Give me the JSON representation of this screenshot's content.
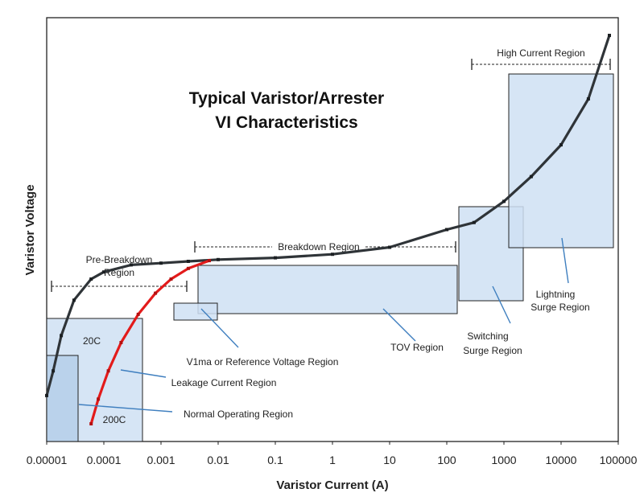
{
  "chart_data": {
    "type": "line",
    "title": [
      "Typical Varistor/Arrester",
      "VI Characteristics"
    ],
    "xlabel": "Varistor Current (A)",
    "ylabel": "Varistor Voltage",
    "x_scale": "log",
    "xlim": [
      1e-05,
      100000
    ],
    "y_ticks_shown": false,
    "x_ticks": [
      "0.00001",
      "0.0001",
      "0.001",
      "0.01",
      "0.1",
      "1",
      "10",
      "100",
      "1000",
      "10000",
      "100000"
    ],
    "series": [
      {
        "name": "20C",
        "color": "#2f3438",
        "points": [
          [
            1e-05,
            0.13
          ],
          [
            1.3e-05,
            0.2
          ],
          [
            1.8e-05,
            0.3
          ],
          [
            3e-05,
            0.4
          ],
          [
            6e-05,
            0.46
          ],
          [
            0.0001,
            0.48
          ],
          [
            0.0003,
            0.5
          ],
          [
            0.001,
            0.505
          ],
          [
            0.003,
            0.51
          ],
          [
            0.01,
            0.515
          ],
          [
            0.1,
            0.52
          ],
          [
            1,
            0.53
          ],
          [
            10,
            0.55
          ],
          [
            100,
            0.6
          ],
          [
            300,
            0.62
          ],
          [
            1000,
            0.68
          ],
          [
            3000,
            0.75
          ],
          [
            10000,
            0.84
          ],
          [
            30000,
            0.97
          ],
          [
            70000,
            1.15
          ]
        ]
      },
      {
        "name": "200C",
        "color": "#e31b1b",
        "points": [
          [
            6e-05,
            0.05
          ],
          [
            8e-05,
            0.12
          ],
          [
            0.00012,
            0.2
          ],
          [
            0.0002,
            0.28
          ],
          [
            0.0004,
            0.36
          ],
          [
            0.0008,
            0.42
          ],
          [
            0.0015,
            0.46
          ],
          [
            0.003,
            0.49
          ],
          [
            0.007,
            0.512
          ]
        ]
      }
    ],
    "regions": [
      "Pre-Breakdown Region",
      "Breakdown Region",
      "High Current Region",
      "V1ma or Reference Voltage Region",
      "Leakage Current Region",
      "Normal Operating Region",
      "TOV Region",
      "Switching Surge Region",
      "Lightning Surge Region"
    ],
    "annotations": {
      "pre_breakdown": [
        "Pre-Breakdown",
        "Region"
      ],
      "breakdown": "Breakdown Region",
      "high_current": "High Current Region",
      "v1ma": "V1ma or Reference Voltage Region",
      "leakage": "Leakage Current Region",
      "normal": "Normal Operating Region",
      "tov": "TOV Region",
      "switching": [
        "Switching",
        "Surge Region"
      ],
      "lightning": [
        "Lightning",
        "Surge Region"
      ],
      "label_20c": "20C",
      "label_200c": "200C"
    },
    "grid": false,
    "legend": "none"
  }
}
